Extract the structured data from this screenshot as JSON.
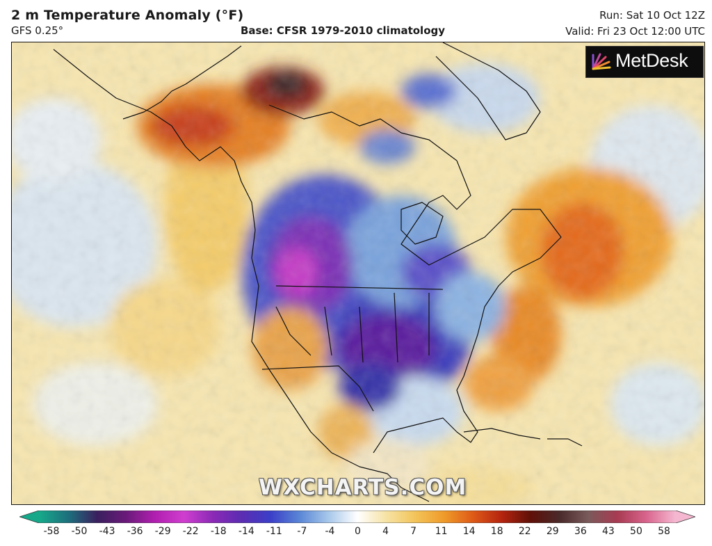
{
  "header": {
    "title": "2 m Temperature Anomaly (°F)",
    "model": "GFS 0.25°",
    "base": "Base: CFSR 1979-2010 climatology",
    "run": "Run: Sat 10 Oct 12Z",
    "valid": "Valid: Fri 23 Oct 12:00 UTC"
  },
  "logo": {
    "text": "MetDesk",
    "icon": "metdesk-fan-icon"
  },
  "watermark": "WXCHARTS.COM",
  "colorbar": {
    "ticks": [
      "-58",
      "-50",
      "-43",
      "-36",
      "-29",
      "-22",
      "-18",
      "-14",
      "-11",
      "-7",
      "-4",
      "0",
      "4",
      "7",
      "11",
      "14",
      "18",
      "22",
      "29",
      "36",
      "43",
      "50",
      "58"
    ],
    "colors": [
      "#17a88a",
      "#1d6f7c",
      "#3a1f5e",
      "#6a1a7a",
      "#b11fb0",
      "#cf3ecf",
      "#8a2ab6",
      "#5a2db2",
      "#3b3fc8",
      "#5a86d6",
      "#a7c8ea",
      "#ffffff",
      "#f6e3a4",
      "#f3c45a",
      "#ef9b2a",
      "#de5a17",
      "#b5240f",
      "#5e1008",
      "#4a2a2a",
      "#7a5a5a",
      "#a83a52",
      "#d8648c",
      "#f4b7cf"
    ]
  }
}
